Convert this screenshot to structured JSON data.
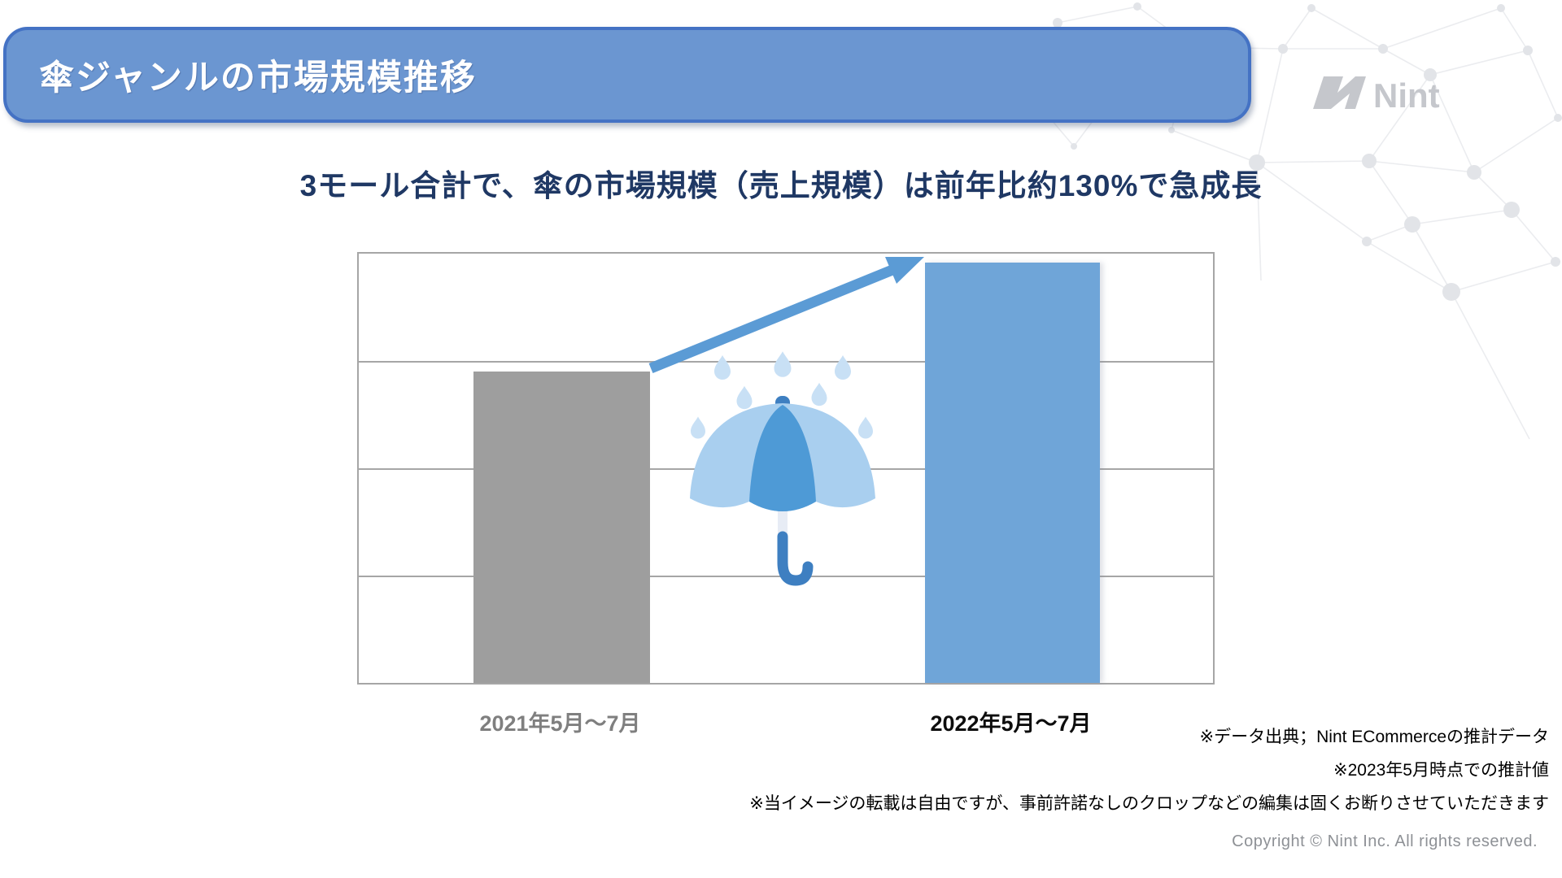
{
  "header": {
    "title": "傘ジャンルの市場規模推移",
    "banner_fill": "#6B96D1",
    "banner_border": "#4472C4",
    "title_color": "#FFFFFF"
  },
  "logo": {
    "brand": "Nint",
    "color": "#C5C7CC"
  },
  "subtitle": {
    "text": "3モール合計で、傘の市場規模（売上規模）は前年比約130%で急成長",
    "color": "#1F3864"
  },
  "chart_data": {
    "type": "bar",
    "categories": [
      "2021年5月～7月",
      "2022年5月～7月"
    ],
    "values": [
      100,
      135
    ],
    "ylim": [
      0,
      138
    ],
    "value_axis_visible": false,
    "value_labels_visible": false,
    "gridlines": "horizontal, 4 equal bands, gray",
    "bar_colors": [
      "#9E9E9E",
      "#6FA5D8"
    ],
    "category_colors": [
      "#7F7F7F",
      "#0D0D0D"
    ],
    "title": "",
    "xlabel": "",
    "ylabel": "",
    "legend": "none",
    "annotations": [
      "growth arrow from top of 2021 bar to top of 2022 bar",
      "umbrella icon with rain drops between the bars",
      "growth stated in subtitle: 前年比約130%"
    ]
  },
  "icons": {
    "umbrella-icon": "blue umbrella with J handle",
    "rain-drop-icon": "light blue teardrops",
    "growth-arrow-icon": "thick blue diagonal arrow up-right",
    "nint-logo-mark": "gray slanted N mark",
    "network-pattern": "light gray plexus dots and lines, top-right corner"
  },
  "footnotes": [
    "※データ出典；Nint ECommerceの推計データ",
    "※2023年5月時点での推計値",
    "※当イメージの転載は自由ですが、事前許諾なしのクロップなどの編集は固くお断りさせていただきます"
  ],
  "copyright": "Copyright © Nint Inc. All rights reserved.",
  "colors": {
    "arrow": "#5B9BD5",
    "gridline": "#A6A6A6",
    "umbrella_light": "#A9CFEF",
    "umbrella_dark": "#4E9AD6",
    "umbrella_handle": "#3E7FC1",
    "rain_drop": "#C8E0F5",
    "footnote": "#000000",
    "copyright": "#8E9196"
  }
}
